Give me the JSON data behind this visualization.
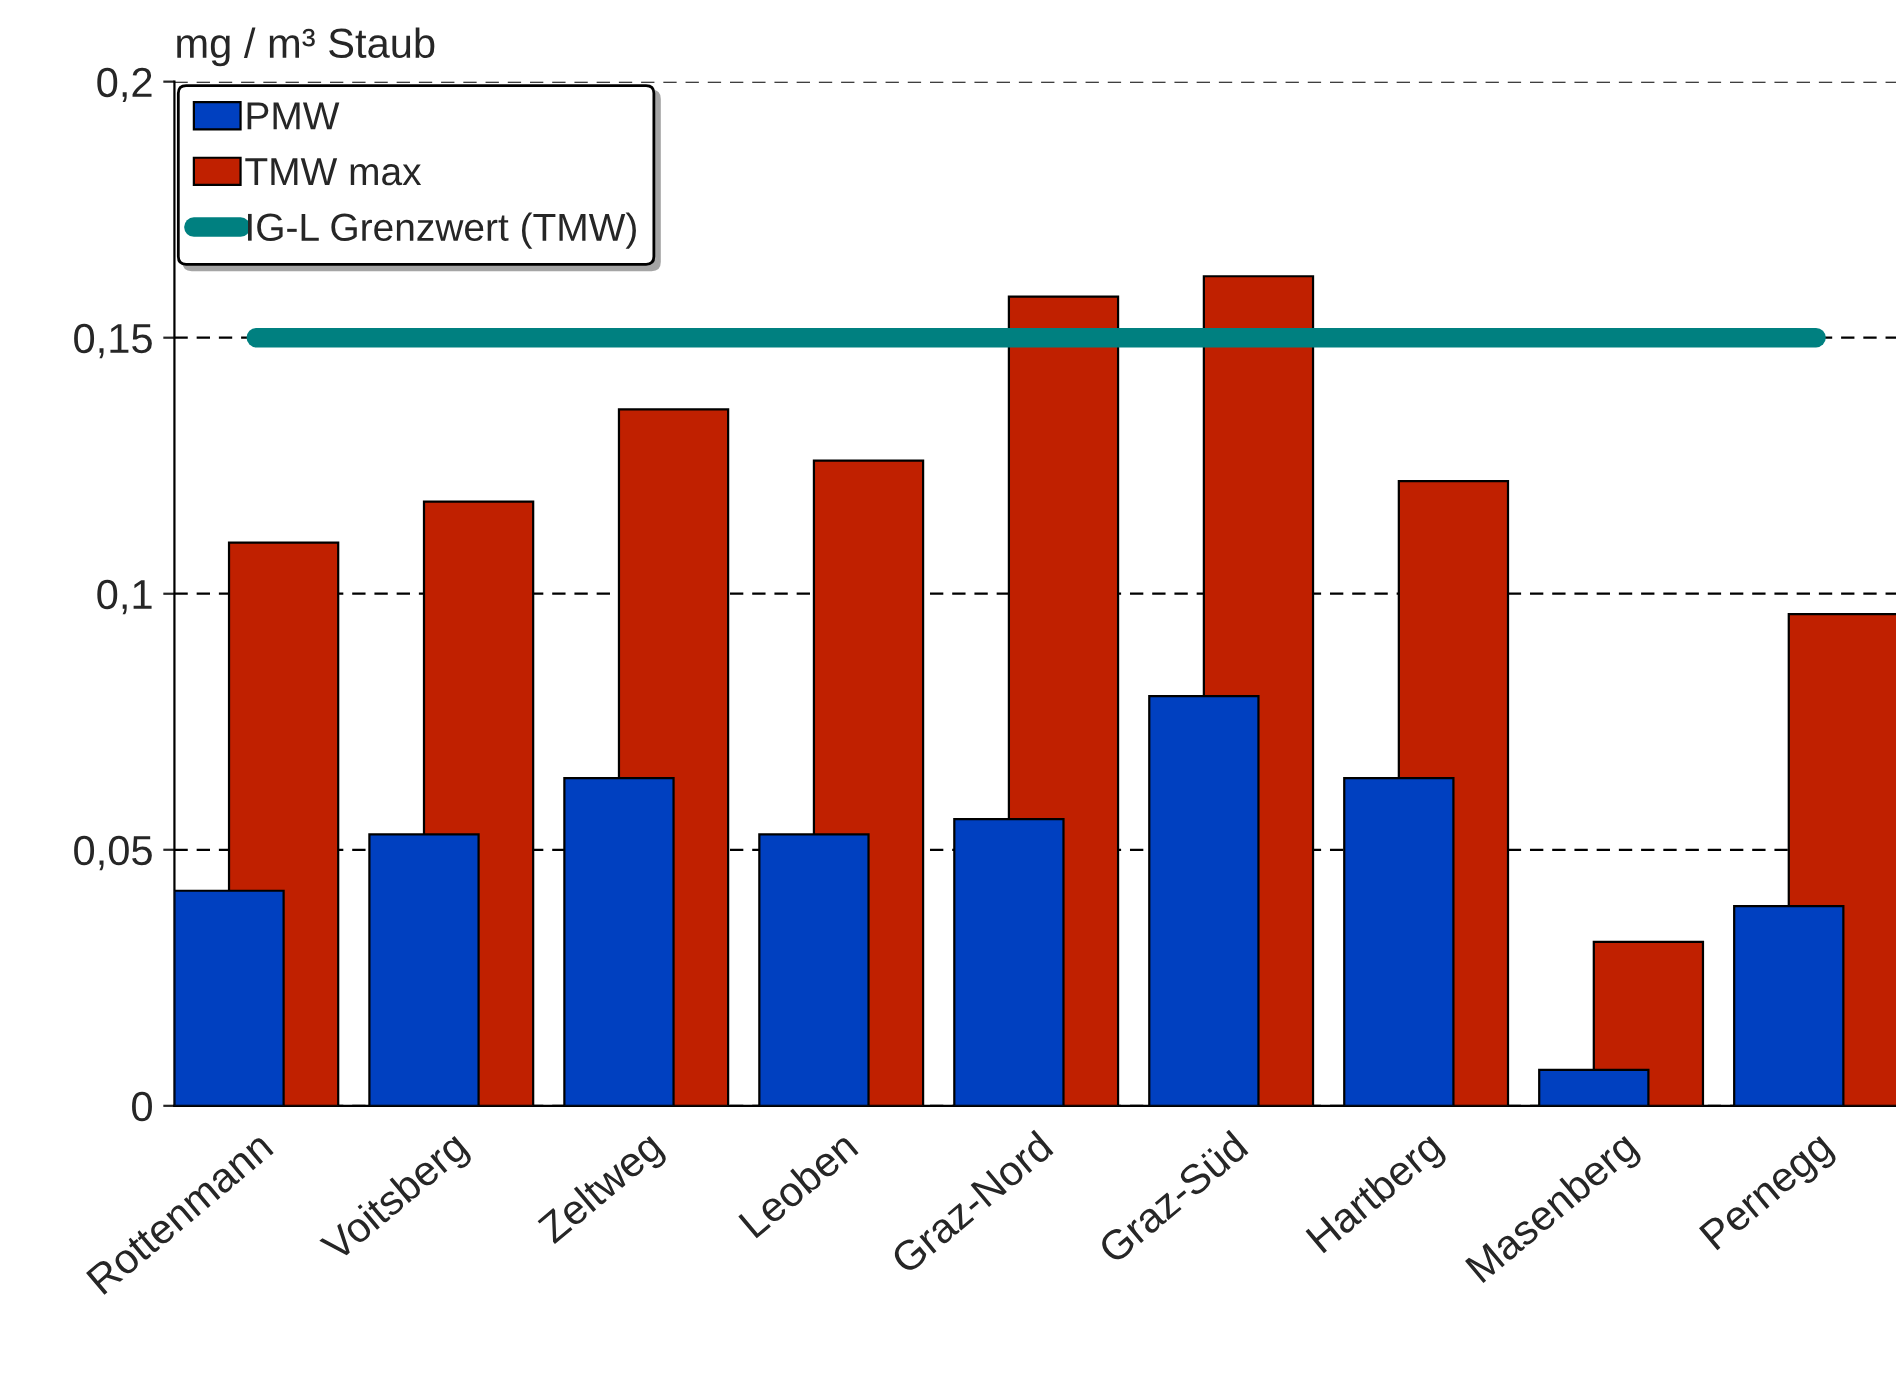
{
  "chart_data": {
    "type": "bar",
    "ylabel": "mg / m³ Staub",
    "categories": [
      "Rottenmann",
      "Voitsberg",
      "Zeltweg",
      "Leoben",
      "Graz-Nord",
      "Graz-Süd",
      "Hartberg",
      "Masenberg",
      "Pernegg"
    ],
    "series": [
      {
        "name": "PMW",
        "color": "#0040c0",
        "values": [
          0.042,
          0.053,
          0.064,
          0.053,
          0.056,
          0.08,
          0.064,
          0.007,
          0.039
        ]
      },
      {
        "name": "TMW max",
        "color": "#c02000",
        "values": [
          0.11,
          0.118,
          0.136,
          0.126,
          0.158,
          0.162,
          0.122,
          0.032,
          0.096
        ]
      },
      {
        "name": "IG-L Grenzwert (TMW)",
        "type": "line",
        "color": "#008080",
        "values": [
          0.15,
          0.15,
          0.15,
          0.15,
          0.15,
          0.15,
          0.15,
          0.15,
          0.15
        ]
      }
    ],
    "ylim": [
      0,
      0.2
    ],
    "yticks": [
      {
        "value": 0,
        "label": "0"
      },
      {
        "value": 0.05,
        "label": "0,05"
      },
      {
        "value": 0.1,
        "label": "0,1"
      },
      {
        "value": 0.15,
        "label": "0,15"
      },
      {
        "value": 0.2,
        "label": "0,2"
      }
    ],
    "grid": "y",
    "legend": "top left",
    "marker": "none"
  }
}
